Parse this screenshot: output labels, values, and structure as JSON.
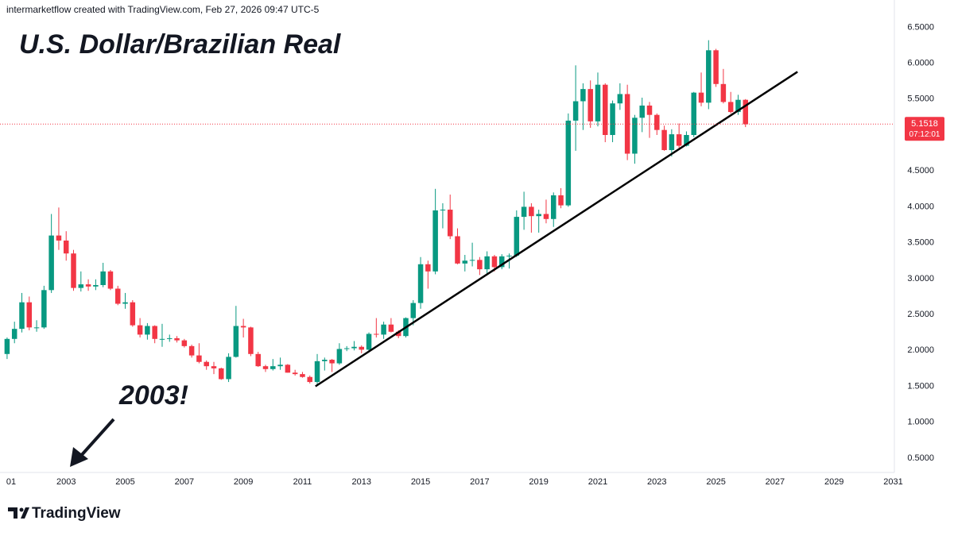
{
  "header": "intermarketflow created with TradingView.com, Feb 27, 2026 09:47 UTC-5",
  "logo": "TradingView",
  "chart_data": {
    "type": "candlestick",
    "title": "U.S. Dollar/Brazilian Real",
    "annotation": "2003!",
    "up_color": "#089981",
    "down_color": "#f23645",
    "xlim": [
      2000.76,
      2031.04
    ],
    "ylim": [
      0.3,
      6.88
    ],
    "xticks": [
      {
        "value": 2001,
        "label": "01"
      },
      2003,
      2005,
      2007,
      2009,
      2011,
      2013,
      2015,
      2017,
      2019,
      2021,
      2023,
      2025,
      2027,
      2029,
      2031
    ],
    "yticks": [
      {
        "value": 0.5,
        "label": "0.5000"
      },
      {
        "value": 1,
        "label": "1.0000"
      },
      {
        "value": 1.5,
        "label": "1.5000"
      },
      {
        "value": 2,
        "label": "2.0000"
      },
      {
        "value": 2.5,
        "label": "2.5000"
      },
      {
        "value": 3,
        "label": "3.0000"
      },
      {
        "value": 3.5,
        "label": "3.5000"
      },
      {
        "value": 4,
        "label": "4.0000"
      },
      {
        "value": 4.5,
        "label": "4.5000"
      },
      {
        "value": 5,
        "label": "5.0000"
      },
      {
        "value": 5.5,
        "label": "5.5000"
      },
      {
        "value": 6,
        "label": "6.0000"
      },
      {
        "value": 6.5,
        "label": "6.5000"
      }
    ],
    "last_price": 5.1518,
    "countdown": "07:12:01",
    "price_color": "#f23645",
    "trendline": {
      "x": [
        2011.44,
        2027.76
      ],
      "y": [
        1.5,
        5.88
      ]
    },
    "x": [
      2001,
      2001.25,
      2001.5,
      2001.75,
      2002,
      2002.25,
      2002.5,
      2002.75,
      2003,
      2003.25,
      2003.5,
      2003.75,
      2004,
      2004.25,
      2004.5,
      2004.75,
      2005,
      2005.25,
      2005.5,
      2005.75,
      2006,
      2006.25,
      2006.5,
      2006.75,
      2007,
      2007.25,
      2007.5,
      2007.75,
      2008,
      2008.25,
      2008.5,
      2008.75,
      2009,
      2009.25,
      2009.5,
      2009.75,
      2010,
      2010.25,
      2010.5,
      2010.75,
      2011,
      2011.25,
      2011.5,
      2011.75,
      2012,
      2012.25,
      2012.5,
      2012.75,
      2013,
      2013.25,
      2013.5,
      2013.75,
      2014,
      2014.25,
      2014.5,
      2014.75,
      2015,
      2015.25,
      2015.5,
      2015.75,
      2016,
      2016.25,
      2016.5,
      2016.75,
      2017,
      2017.25,
      2017.5,
      2017.75,
      2018,
      2018.25,
      2018.5,
      2018.75,
      2019,
      2019.25,
      2019.5,
      2019.75,
      2020,
      2020.25,
      2020.5,
      2020.75,
      2021,
      2021.25,
      2021.5,
      2021.75,
      2022,
      2022.25,
      2022.5,
      2022.75,
      2023,
      2023.25,
      2023.5,
      2023.75,
      2024,
      2024.25,
      2024.5,
      2024.75,
      2025,
      2025.25,
      2025.5,
      2025.75,
      2026
    ],
    "open": [
      1.95,
      2.16,
      2.3,
      2.67,
      2.32,
      2.32,
      2.84,
      3.6,
      3.53,
      3.35,
      2.87,
      2.92,
      2.89,
      2.91,
      3.1,
      2.86,
      2.65,
      2.67,
      2.35,
      2.22,
      2.34,
      2.16,
      2.16,
      2.17,
      2.14,
      2.06,
      1.93,
      1.84,
      1.78,
      1.75,
      1.6,
      1.91,
      2.34,
      2.32,
      1.95,
      1.78,
      1.74,
      1.78,
      1.8,
      1.69,
      1.67,
      1.63,
      1.56,
      1.85,
      1.87,
      1.82,
      2.02,
      2.03,
      2.05,
      2.01,
      2.23,
      2.22,
      2.36,
      2.26,
      2.2,
      2.45,
      2.66,
      3.2,
      3.1,
      3.95,
      3.96,
      3.59,
      3.21,
      3.25,
      3.26,
      3.13,
      3.31,
      3.16,
      3.31,
      3.32,
      3.86,
      4,
      3.87,
      3.9,
      3.83,
      4.16,
      4.02,
      5.2,
      5.47,
      5.64,
      5.19,
      5.7,
      5,
      5.44,
      5.57,
      4.74,
      5.24,
      5.41,
      5.28,
      5.07,
      4.79,
      5.01,
      4.85,
      5,
      5.59,
      5.45,
      6.18,
      5.71,
      5.46,
      5.32,
      5.49
    ],
    "high": [
      2.18,
      2.4,
      2.8,
      2.75,
      2.42,
      2.9,
      3.9,
      3.99,
      3.66,
      3.4,
      3.1,
      2.99,
      2.99,
      3.22,
      3.12,
      2.9,
      2.8,
      2.7,
      2.45,
      2.38,
      2.35,
      2.37,
      2.22,
      2.2,
      2.16,
      2.08,
      2.1,
      1.86,
      1.84,
      1.76,
      1.96,
      2.62,
      2.44,
      2.33,
      1.98,
      1.8,
      1.88,
      1.9,
      1.81,
      1.73,
      1.7,
      1.65,
      1.95,
      1.9,
      1.88,
      2.1,
      2.06,
      2.13,
      2.07,
      2.25,
      2.45,
      2.4,
      2.45,
      2.28,
      2.46,
      2.7,
      3.3,
      3.25,
      4.25,
      4.05,
      4.17,
      3.7,
      3.33,
      3.5,
      3.3,
      3.38,
      3.33,
      3.34,
      3.35,
      3.95,
      4.21,
      4.05,
      3.96,
      4.1,
      4.2,
      4.26,
      5.3,
      5.97,
      5.72,
      5.76,
      5.87,
      5.72,
      5.48,
      5.72,
      5.7,
      5.28,
      5.52,
      5.46,
      5.3,
      5.13,
      5.08,
      5.16,
      5.05,
      5.6,
      5.87,
      6.32,
      6.2,
      5.92,
      5.6,
      5.56,
      5.5
    ],
    "low": [
      1.88,
      2.1,
      2.25,
      2.28,
      2.26,
      2.3,
      2.8,
      3.4,
      3.25,
      2.83,
      2.82,
      2.83,
      2.84,
      2.88,
      2.84,
      2.63,
      2.58,
      2.33,
      2.18,
      2.15,
      2.1,
      2.05,
      2.12,
      2.11,
      2.04,
      1.9,
      1.82,
      1.73,
      1.67,
      1.59,
      1.56,
      1.9,
      2.18,
      1.92,
      1.77,
      1.7,
      1.72,
      1.73,
      1.69,
      1.65,
      1.62,
      1.54,
      1.53,
      1.72,
      1.7,
      1.8,
      1.99,
      2,
      1.96,
      1.98,
      2.18,
      2.16,
      2.25,
      2.17,
      2.18,
      2.35,
      2.58,
      2.86,
      3.06,
      3.7,
      3.55,
      3.2,
      3.1,
      3.17,
      3.05,
      3.07,
      3.1,
      3.13,
      3.14,
      3.3,
      3.68,
      3.64,
      3.64,
      3.77,
      3.72,
      3.98,
      4,
      4.78,
      5.07,
      5.1,
      5.12,
      4.9,
      4.9,
      5.35,
      4.65,
      4.6,
      5.04,
      4.96,
      5,
      4.78,
      4.7,
      4.82,
      4.84,
      4.97,
      5.4,
      5.36,
      5.67,
      5.44,
      5.3,
      5.28,
      5.11
    ],
    "close": [
      2.16,
      2.3,
      2.67,
      2.32,
      2.32,
      2.84,
      3.6,
      3.53,
      3.35,
      2.87,
      2.92,
      2.89,
      2.91,
      3.1,
      2.86,
      2.65,
      2.67,
      2.35,
      2.22,
      2.34,
      2.16,
      2.16,
      2.17,
      2.14,
      2.06,
      1.93,
      1.84,
      1.78,
      1.75,
      1.6,
      1.91,
      2.34,
      2.32,
      1.95,
      1.78,
      1.74,
      1.78,
      1.8,
      1.69,
      1.67,
      1.63,
      1.56,
      1.85,
      1.87,
      1.82,
      2.02,
      2.03,
      2.05,
      2.01,
      2.23,
      2.22,
      2.36,
      2.26,
      2.2,
      2.45,
      2.66,
      3.2,
      3.1,
      3.95,
      3.96,
      3.59,
      3.21,
      3.25,
      3.26,
      3.13,
      3.31,
      3.16,
      3.31,
      3.32,
      3.86,
      4,
      3.87,
      3.9,
      3.83,
      4.16,
      4.02,
      5.2,
      5.47,
      5.64,
      5.19,
      5.7,
      5,
      5.44,
      5.57,
      4.74,
      5.24,
      5.41,
      5.28,
      5.07,
      4.79,
      5.01,
      4.85,
      5,
      5.59,
      5.45,
      6.18,
      5.71,
      5.46,
      5.32,
      5.49,
      5.15
    ]
  }
}
